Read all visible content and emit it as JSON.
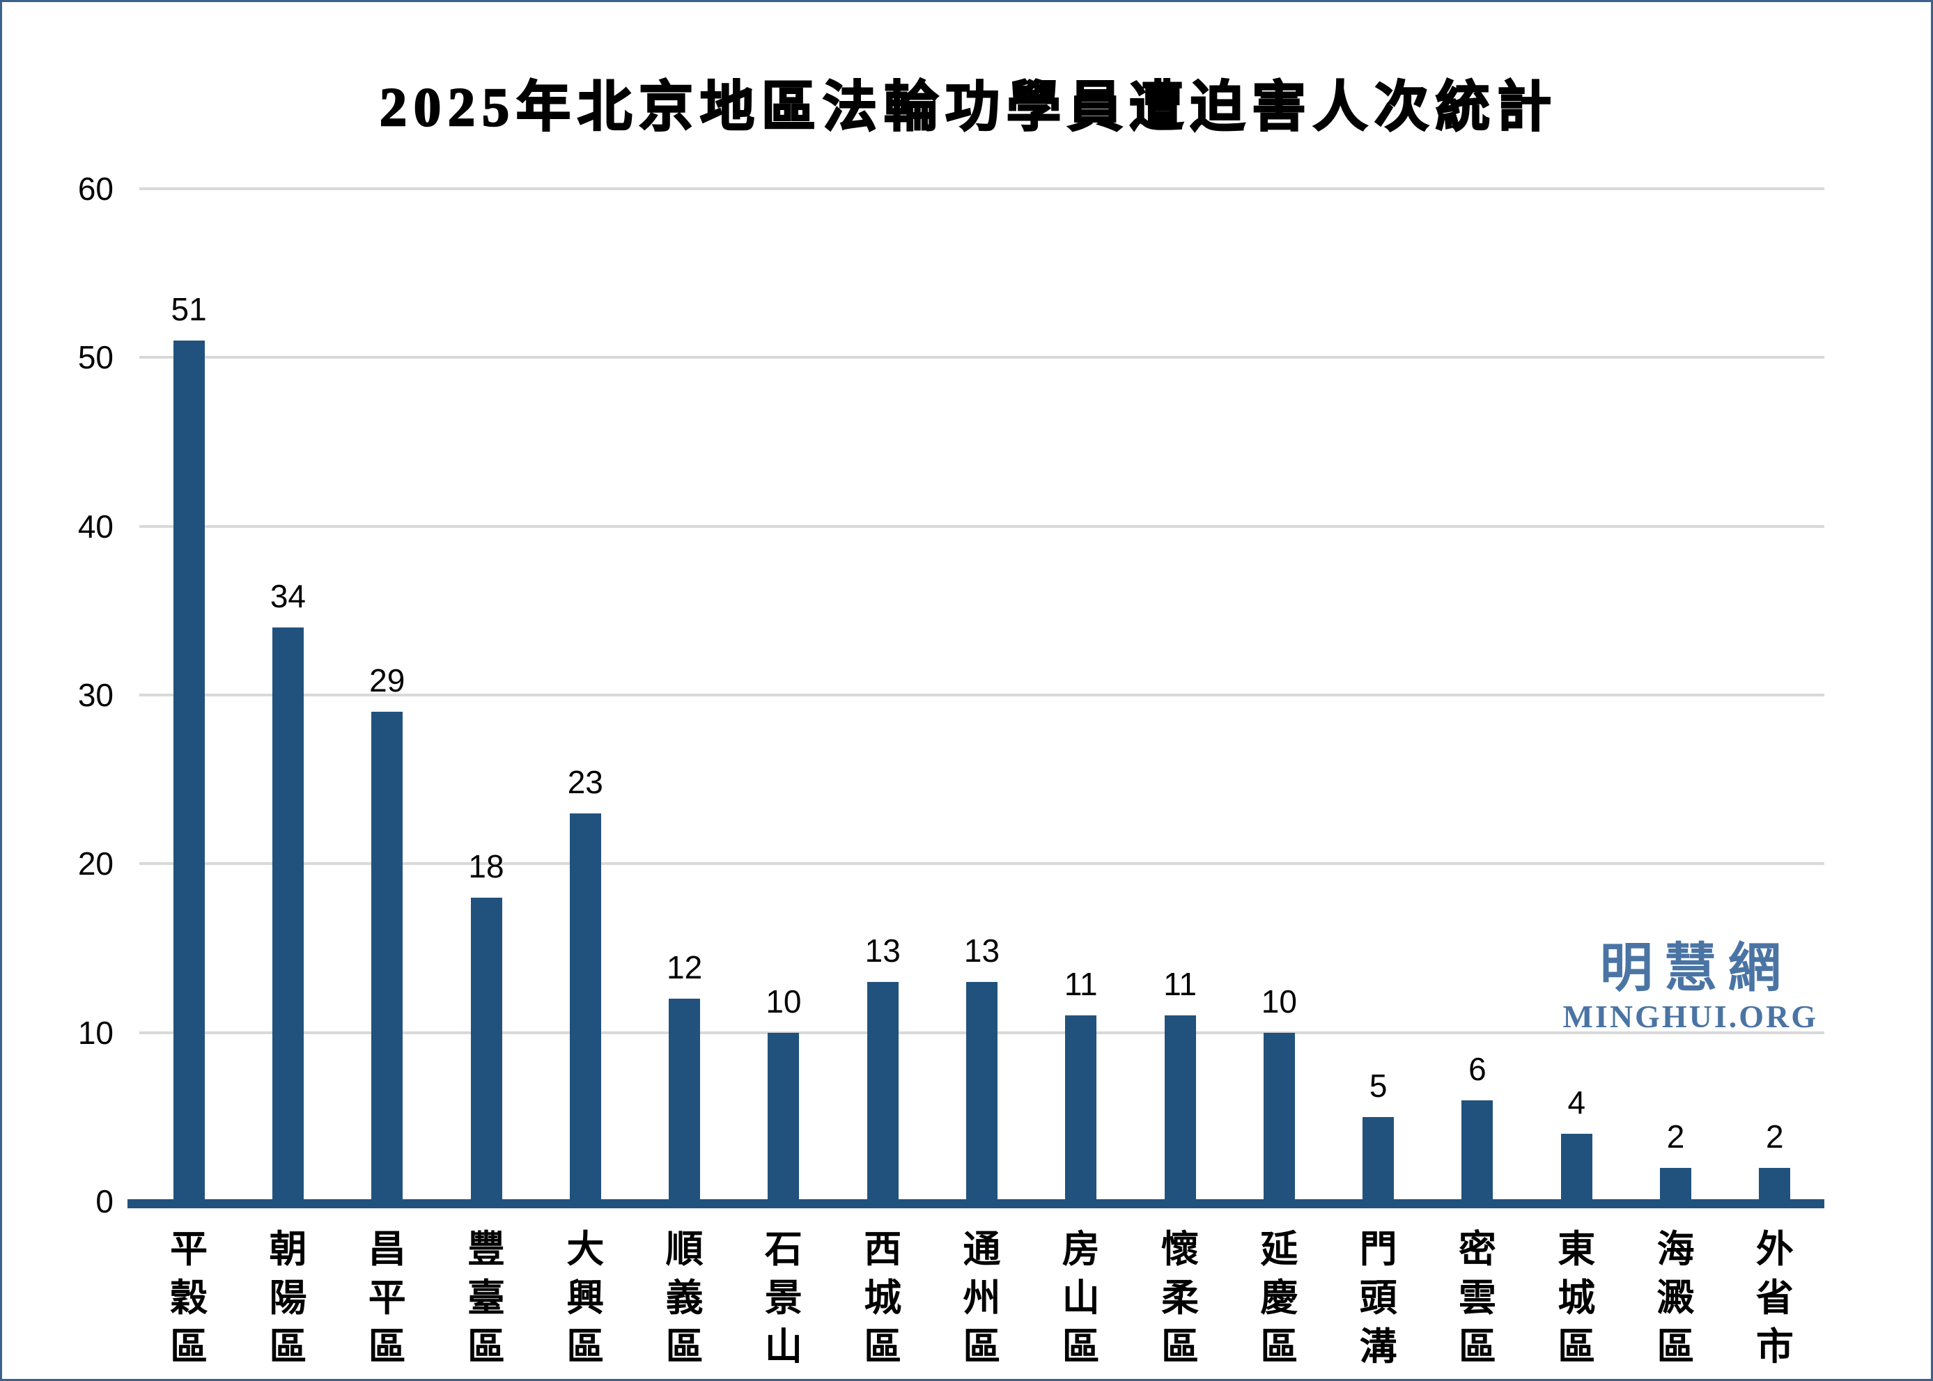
{
  "watermark": {
    "cjk": "明慧網",
    "latin": "MINGHUI.ORG"
  },
  "colors": {
    "bar": "#21527D",
    "axis_line": "#21527D",
    "gridline": "#D9D9D9",
    "watermark": "#4A74A4",
    "text": "#000000",
    "frame_border": "#3A628C",
    "background": "#FFFFFF"
  },
  "chart_data": {
    "type": "bar",
    "title": "2025年北京地區法輪功學員遭迫害人次統計",
    "categories": [
      "平穀區",
      "朝陽區",
      "昌平區",
      "豐臺區",
      "大興區",
      "順義區",
      "石景山",
      "西城區",
      "通州區",
      "房山區",
      "懷柔區",
      "延慶區",
      "門頭溝",
      "密雲區",
      "東城區",
      "海澱區",
      "外省市"
    ],
    "values": [
      51,
      34,
      29,
      18,
      23,
      12,
      10,
      13,
      13,
      11,
      11,
      10,
      5,
      6,
      4,
      2,
      2
    ],
    "xlabel": "",
    "ylabel": "",
    "ylim": [
      0,
      60
    ],
    "yticks": [
      0,
      10,
      20,
      30,
      40,
      50,
      60
    ],
    "grid": true,
    "legend_position": "none",
    "data_labels": true,
    "category_label_orientation": "vertical-stacked"
  }
}
